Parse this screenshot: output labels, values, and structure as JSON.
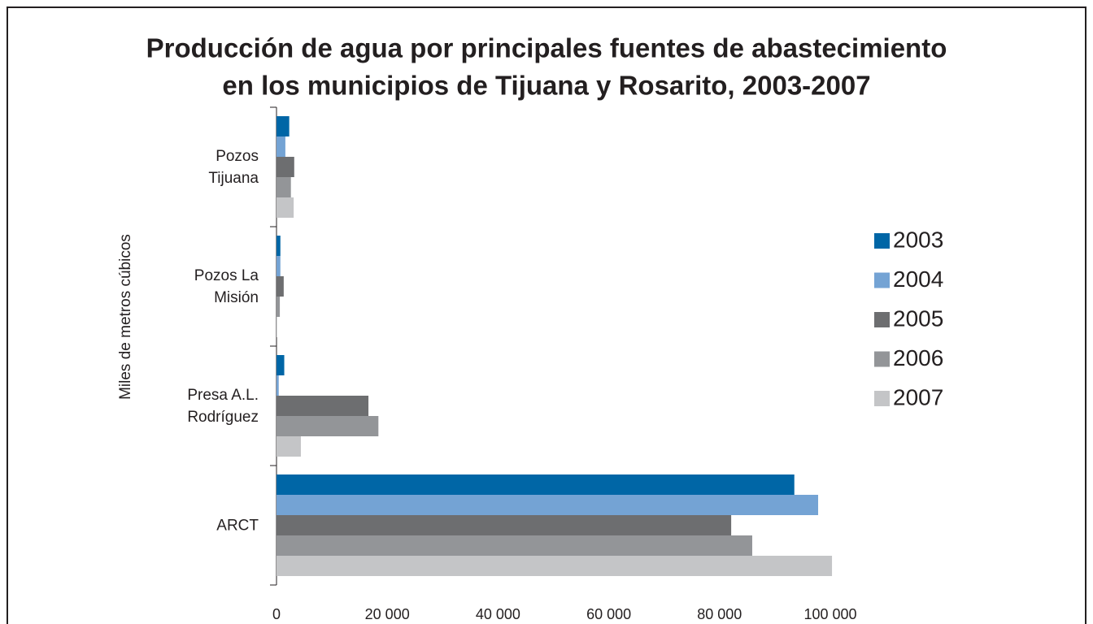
{
  "chart_data": {
    "type": "barh",
    "title": "Producción de agua por principales fuentes de abastecimiento",
    "subtitle": "en los municipios de Tijuana y Rosarito, 2003-2007",
    "y_label": "Miles de metros cúbicos",
    "categories": [
      "Pozos\nTijuana",
      "Pozos La\nMisión",
      "Presa A.L.\nRodríguez",
      "ARCT"
    ],
    "series": [
      {
        "name": "2003",
        "color": "#0066a6",
        "values": [
          2300,
          700,
          1400,
          93500
        ]
      },
      {
        "name": "2004",
        "color": "#74a3d4",
        "values": [
          1600,
          700,
          400,
          97800
        ]
      },
      {
        "name": "2005",
        "color": "#6d6e70",
        "values": [
          3200,
          1300,
          16600,
          82100
        ]
      },
      {
        "name": "2006",
        "color": "#939598",
        "values": [
          2600,
          600,
          18400,
          85900
        ]
      },
      {
        "name": "2007",
        "color": "#c4c5c7",
        "values": [
          3100,
          100,
          4400,
          100300
        ]
      }
    ],
    "xlim": [
      0,
      100000
    ],
    "xticks": [
      0,
      {
        "value": 20000,
        "label": "20 000"
      },
      {
        "value": 40000,
        "label": "40 000"
      },
      {
        "value": 60000,
        "label": "60 000"
      },
      {
        "value": 80000,
        "label": "80 000"
      },
      {
        "value": 100000,
        "label": "100 000"
      }
    ],
    "legend": "right",
    "grid": false
  }
}
